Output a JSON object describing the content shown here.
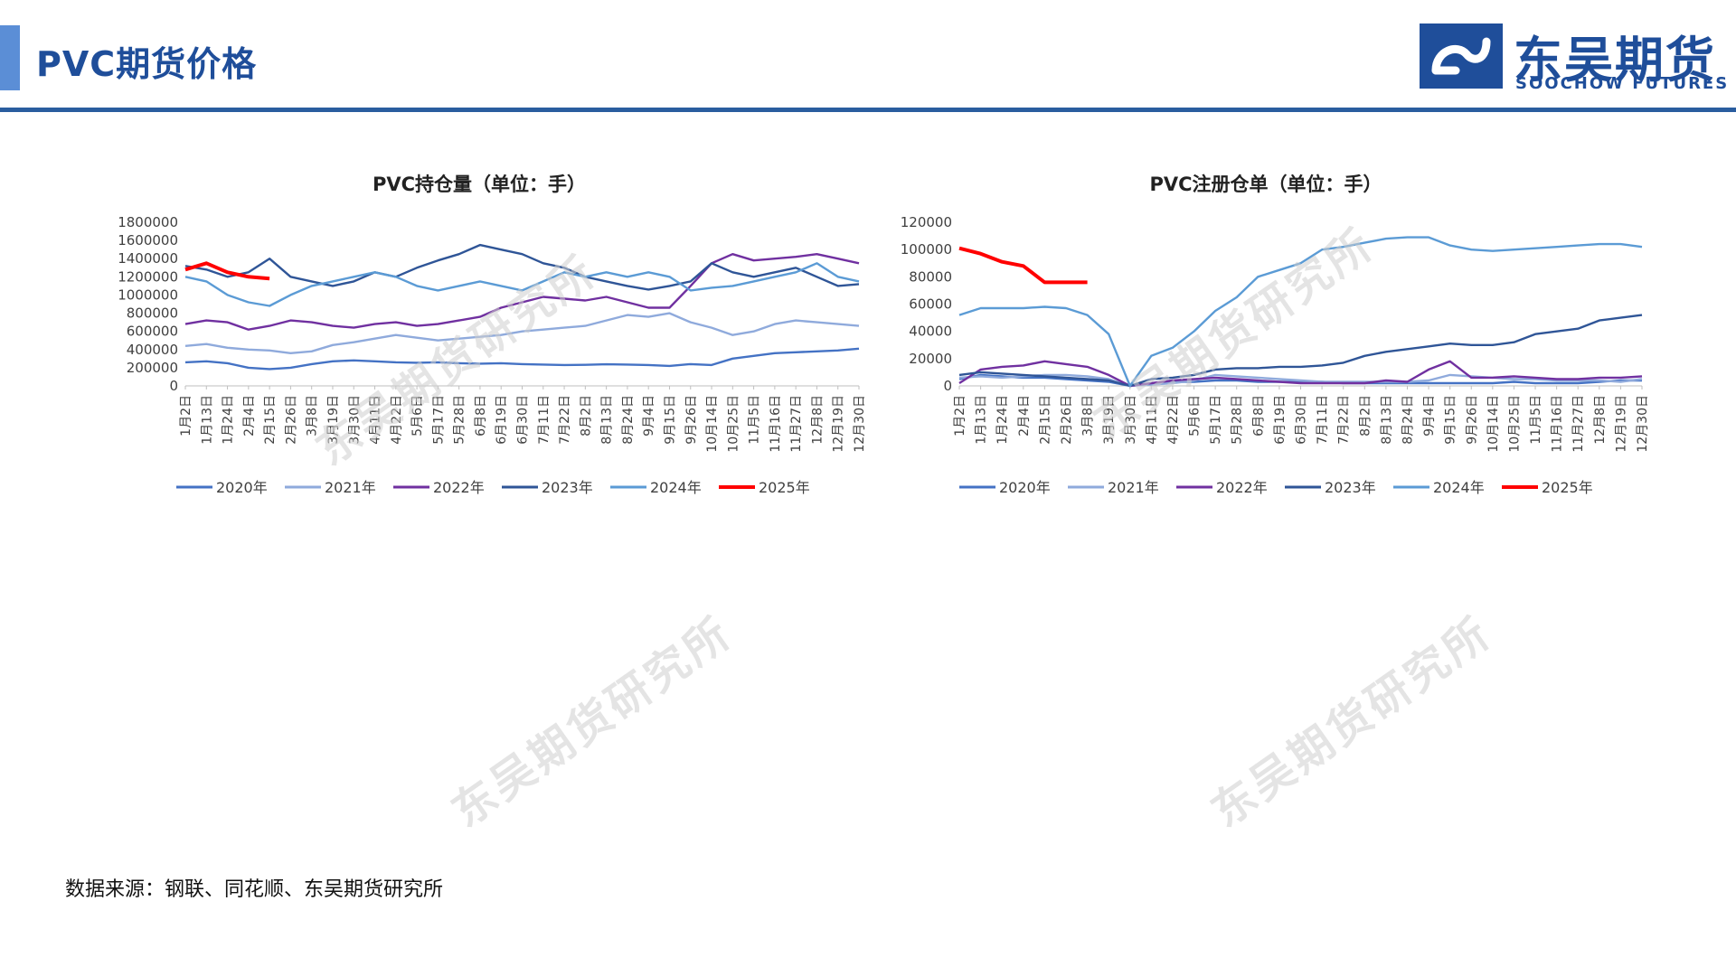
{
  "header": {
    "title": "PVC期货价格",
    "logo_cn": "东吴期货",
    "logo_en": "SOOCHOW FUTURES"
  },
  "colors": {
    "accent": "#5b8ed6",
    "rule": "#2a5d9f",
    "series": [
      "#4472c4",
      "#8faadc",
      "#7030a0",
      "#2f5597",
      "#5b9bd5",
      "#ff0000"
    ]
  },
  "watermark": "东吴期货研究所",
  "source": "数据来源：钢联、同花顺、东吴期货研究所",
  "chart_data": [
    {
      "type": "line",
      "title": "PVC持仓量（单位：手）",
      "ylim": [
        0,
        1800000
      ],
      "yticks": [
        "1800000",
        "1600000",
        "1400000",
        "1200000",
        "1000000",
        "800000",
        "600000",
        "400000",
        "200000",
        "0"
      ],
      "xticks": [
        "1月2日",
        "1月13日",
        "1月24日",
        "2月4日",
        "2月15日",
        "2月26日",
        "3月8日",
        "3月19日",
        "3月30日",
        "4月11日",
        "4月22日",
        "5月6日",
        "5月17日",
        "5月28日",
        "6月8日",
        "6月19日",
        "6月30日",
        "7月11日",
        "7月22日",
        "8月2日",
        "8月13日",
        "8月24日",
        "9月4日",
        "9月15日",
        "9月26日",
        "10月14日",
        "10月25日",
        "11月5日",
        "11月16日",
        "11月27日",
        "12月8日",
        "12月19日",
        "12月30日"
      ],
      "grid": false,
      "legend": "bottom",
      "series": [
        {
          "name": "2020年",
          "values": [
            260000,
            270000,
            250000,
            200000,
            185000,
            200000,
            240000,
            270000,
            280000,
            270000,
            260000,
            255000,
            260000,
            250000,
            245000,
            250000,
            240000,
            235000,
            230000,
            232000,
            238000,
            235000,
            230000,
            220000,
            240000,
            230000,
            300000,
            330000,
            360000,
            370000,
            380000,
            390000,
            410000
          ]
        },
        {
          "name": "2021年",
          "values": [
            440000,
            460000,
            420000,
            400000,
            390000,
            360000,
            380000,
            450000,
            480000,
            520000,
            560000,
            530000,
            500000,
            520000,
            540000,
            560000,
            600000,
            620000,
            640000,
            660000,
            720000,
            780000,
            760000,
            800000,
            700000,
            640000,
            560000,
            600000,
            680000,
            720000,
            700000,
            680000,
            660000
          ]
        },
        {
          "name": "2022年",
          "values": [
            680000,
            720000,
            700000,
            620000,
            660000,
            720000,
            700000,
            660000,
            640000,
            680000,
            700000,
            660000,
            680000,
            720000,
            760000,
            860000,
            920000,
            980000,
            960000,
            940000,
            980000,
            920000,
            860000,
            860000,
            1100000,
            1350000,
            1450000,
            1380000,
            1400000,
            1420000,
            1450000,
            1400000,
            1350000
          ]
        },
        {
          "name": "2023年",
          "values": [
            1320000,
            1280000,
            1200000,
            1250000,
            1400000,
            1200000,
            1150000,
            1100000,
            1150000,
            1250000,
            1200000,
            1300000,
            1380000,
            1450000,
            1550000,
            1500000,
            1450000,
            1350000,
            1300000,
            1200000,
            1150000,
            1100000,
            1060000,
            1100000,
            1150000,
            1350000,
            1250000,
            1200000,
            1250000,
            1300000,
            1200000,
            1100000,
            1120000
          ]
        },
        {
          "name": "2024年",
          "values": [
            1200000,
            1150000,
            1000000,
            920000,
            880000,
            1000000,
            1100000,
            1150000,
            1200000,
            1250000,
            1200000,
            1100000,
            1050000,
            1100000,
            1150000,
            1100000,
            1050000,
            1150000,
            1250000,
            1200000,
            1250000,
            1200000,
            1250000,
            1200000,
            1050000,
            1080000,
            1100000,
            1150000,
            1200000,
            1250000,
            1350000,
            1200000,
            1150000
          ]
        },
        {
          "name": "2025年",
          "values": [
            1280000,
            1350000,
            1250000,
            1200000,
            1180000
          ]
        }
      ]
    },
    {
      "type": "line",
      "title": "PVC注册仓单（单位：手）",
      "ylim": [
        0,
        120000
      ],
      "yticks": [
        "120000",
        "100000",
        "80000",
        "60000",
        "40000",
        "20000",
        "0"
      ],
      "xticks": [
        "1月2日",
        "1月13日",
        "1月24日",
        "2月4日",
        "2月15日",
        "2月26日",
        "3月8日",
        "3月19日",
        "3月30日",
        "4月11日",
        "4月22日",
        "5月6日",
        "5月17日",
        "5月28日",
        "6月8日",
        "6月19日",
        "6月30日",
        "7月11日",
        "7月22日",
        "8月2日",
        "8月13日",
        "8月24日",
        "9月4日",
        "9月15日",
        "9月26日",
        "10月14日",
        "10月25日",
        "11月5日",
        "11月16日",
        "11月27日",
        "12月8日",
        "12月19日",
        "12月30日"
      ],
      "grid": false,
      "legend": "bottom",
      "series": [
        {
          "name": "2020年",
          "values": [
            5000,
            8000,
            7000,
            6000,
            6000,
            5000,
            4000,
            3000,
            0,
            2000,
            3000,
            3000,
            4000,
            4000,
            3000,
            3000,
            3000,
            3000,
            2000,
            2000,
            2000,
            2000,
            2000,
            2000,
            2000,
            2000,
            3000,
            2000,
            2000,
            2000,
            3000,
            4000,
            4000
          ]
        },
        {
          "name": "2021年",
          "values": [
            6000,
            7000,
            6000,
            7000,
            8000,
            8000,
            7000,
            5000,
            0,
            1000,
            2000,
            4000,
            8000,
            7000,
            6000,
            5000,
            4000,
            3000,
            3000,
            3000,
            3000,
            3000,
            4000,
            8000,
            7000,
            6000,
            5000,
            5000,
            4000,
            4000,
            4000,
            3000,
            5000
          ]
        },
        {
          "name": "2022年",
          "values": [
            2000,
            12000,
            14000,
            15000,
            18000,
            16000,
            14000,
            8000,
            0,
            2000,
            4000,
            5000,
            6000,
            5000,
            4000,
            3000,
            2000,
            2000,
            2000,
            2000,
            4000,
            3000,
            12000,
            18000,
            6000,
            6000,
            7000,
            6000,
            5000,
            5000,
            6000,
            6000,
            7000
          ]
        },
        {
          "name": "2023年",
          "values": [
            8000,
            10000,
            9000,
            8000,
            7000,
            6000,
            5000,
            4000,
            0,
            5000,
            6000,
            8000,
            12000,
            13000,
            13000,
            14000,
            14000,
            15000,
            17000,
            22000,
            25000,
            27000,
            29000,
            31000,
            30000,
            30000,
            32000,
            38000,
            40000,
            42000,
            48000,
            50000,
            52000
          ]
        },
        {
          "name": "2024年",
          "values": [
            52000,
            57000,
            57000,
            57000,
            58000,
            57000,
            52000,
            38000,
            0,
            22000,
            28000,
            40000,
            55000,
            65000,
            80000,
            85000,
            90000,
            100000,
            102000,
            105000,
            108000,
            109000,
            109000,
            103000,
            100000,
            99000,
            100000,
            101000,
            102000,
            103000,
            104000,
            104000,
            102000
          ]
        },
        {
          "name": "2025年",
          "values": [
            101000,
            97000,
            91000,
            88000,
            76000,
            76000,
            76000
          ]
        }
      ]
    }
  ]
}
